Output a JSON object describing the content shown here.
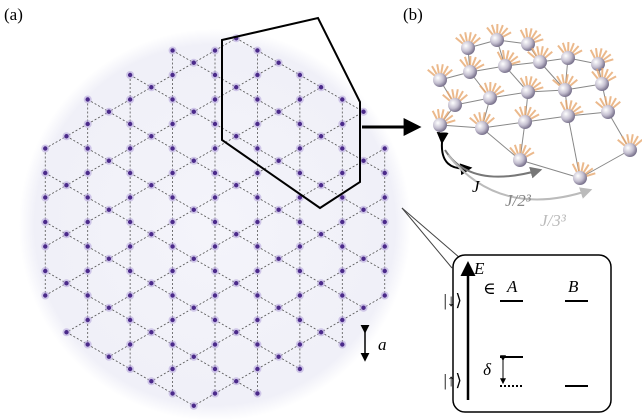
{
  "panel_a": {
    "label": "(a)",
    "lattice_constant": "a"
  },
  "panel_b": {
    "label": "(b)",
    "couplings": [
      "J",
      "J/2³",
      "J/3³"
    ]
  },
  "inset": {
    "axis": "E",
    "states": [
      "|↓⟩",
      "|↑⟩"
    ],
    "member": "∈",
    "sublattices": [
      "A",
      "B"
    ],
    "detuning": "δ"
  }
}
